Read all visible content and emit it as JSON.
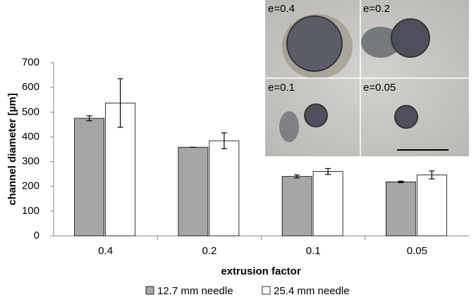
{
  "chart_data": {
    "type": "bar",
    "x_label": "extrusion factor",
    "y_label": "channel diameter [µm]",
    "categories": [
      "0.4",
      "0.2",
      "0.1",
      "0.05"
    ],
    "series": [
      {
        "name": "12.7 mm needle",
        "color": "#a6a6a6",
        "values": [
          475,
          358,
          240,
          218
        ],
        "errors": [
          10,
          0,
          6,
          3
        ]
      },
      {
        "name": "25.4 mm needle",
        "color": "#ffffff",
        "values": [
          537,
          384,
          260,
          246
        ],
        "errors": [
          98,
          32,
          12,
          16
        ]
      }
    ],
    "ylim": [
      0,
      700
    ],
    "yticks": [
      0,
      100,
      200,
      300,
      400,
      500,
      600,
      700
    ],
    "inset_labels": [
      "e=0.4",
      "e=0.2",
      "e=0.1",
      "e=0.05"
    ]
  }
}
